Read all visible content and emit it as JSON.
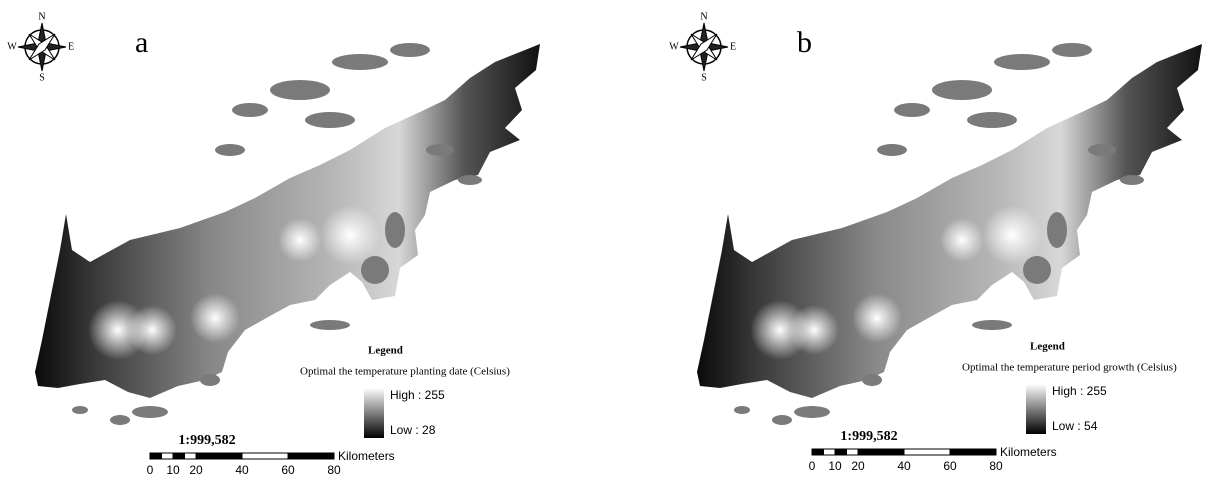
{
  "panels": [
    {
      "label": "a",
      "compass": {
        "n": "N",
        "s": "S",
        "e": "E",
        "w": "W"
      },
      "legend": {
        "heading": "Legend",
        "title": "Optimal the temperature planting date (Celsius)",
        "high": "High : 255",
        "low": "Low : 28"
      },
      "scale": {
        "ratio": "1:999,582",
        "ticks": [
          0,
          10,
          20,
          40,
          60,
          80
        ],
        "unit": "Kilometers"
      }
    },
    {
      "label": "b",
      "compass": {
        "n": "N",
        "s": "S",
        "e": "E",
        "w": "W"
      },
      "legend": {
        "heading": "Legend",
        "title": "Optimal the temperature period growth (Celsius)",
        "high": "High : 255",
        "low": "Low : 54"
      },
      "scale": {
        "ratio": "1:999,582",
        "ticks": [
          0,
          10,
          20,
          40,
          60,
          80
        ],
        "unit": "Kilometers"
      }
    }
  ]
}
